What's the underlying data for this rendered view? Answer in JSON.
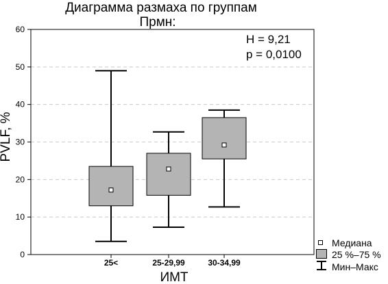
{
  "chart_data": {
    "type": "boxplot",
    "title": "Диаграмма размаха по группам",
    "subtitle": "Прмн:",
    "xlabel": "ИМТ",
    "ylabel": "PVLF, %",
    "ylim": [
      0,
      60
    ],
    "yticks": [
      "0",
      "10",
      "20",
      "30",
      "40",
      "50",
      "60"
    ],
    "grid": true,
    "categories": [
      "25<",
      "25-29,99",
      "30-34,99"
    ],
    "boxes": [
      {
        "category": "25<",
        "min": 3.5,
        "q1": 13.0,
        "median": 17.2,
        "q3": 23.5,
        "max": 49.0
      },
      {
        "category": "25-29,99",
        "min": 7.3,
        "q1": 15.8,
        "median": 22.8,
        "q3": 27.0,
        "max": 32.7
      },
      {
        "category": "30-34,99",
        "min": 12.7,
        "q1": 25.5,
        "median": 29.2,
        "q3": 36.5,
        "max": 38.5
      }
    ],
    "annotations": [
      "H = 9,21",
      "p = 0,0100"
    ],
    "legend": {
      "placement": "bottom-right",
      "entries": [
        "Медиана",
        "25 %–75 %",
        "Мин–Макс"
      ]
    },
    "colors": {
      "box_fill": "#b4b4b4",
      "grid": "#c8c8c8",
      "median_marker": "#ffffff"
    }
  }
}
